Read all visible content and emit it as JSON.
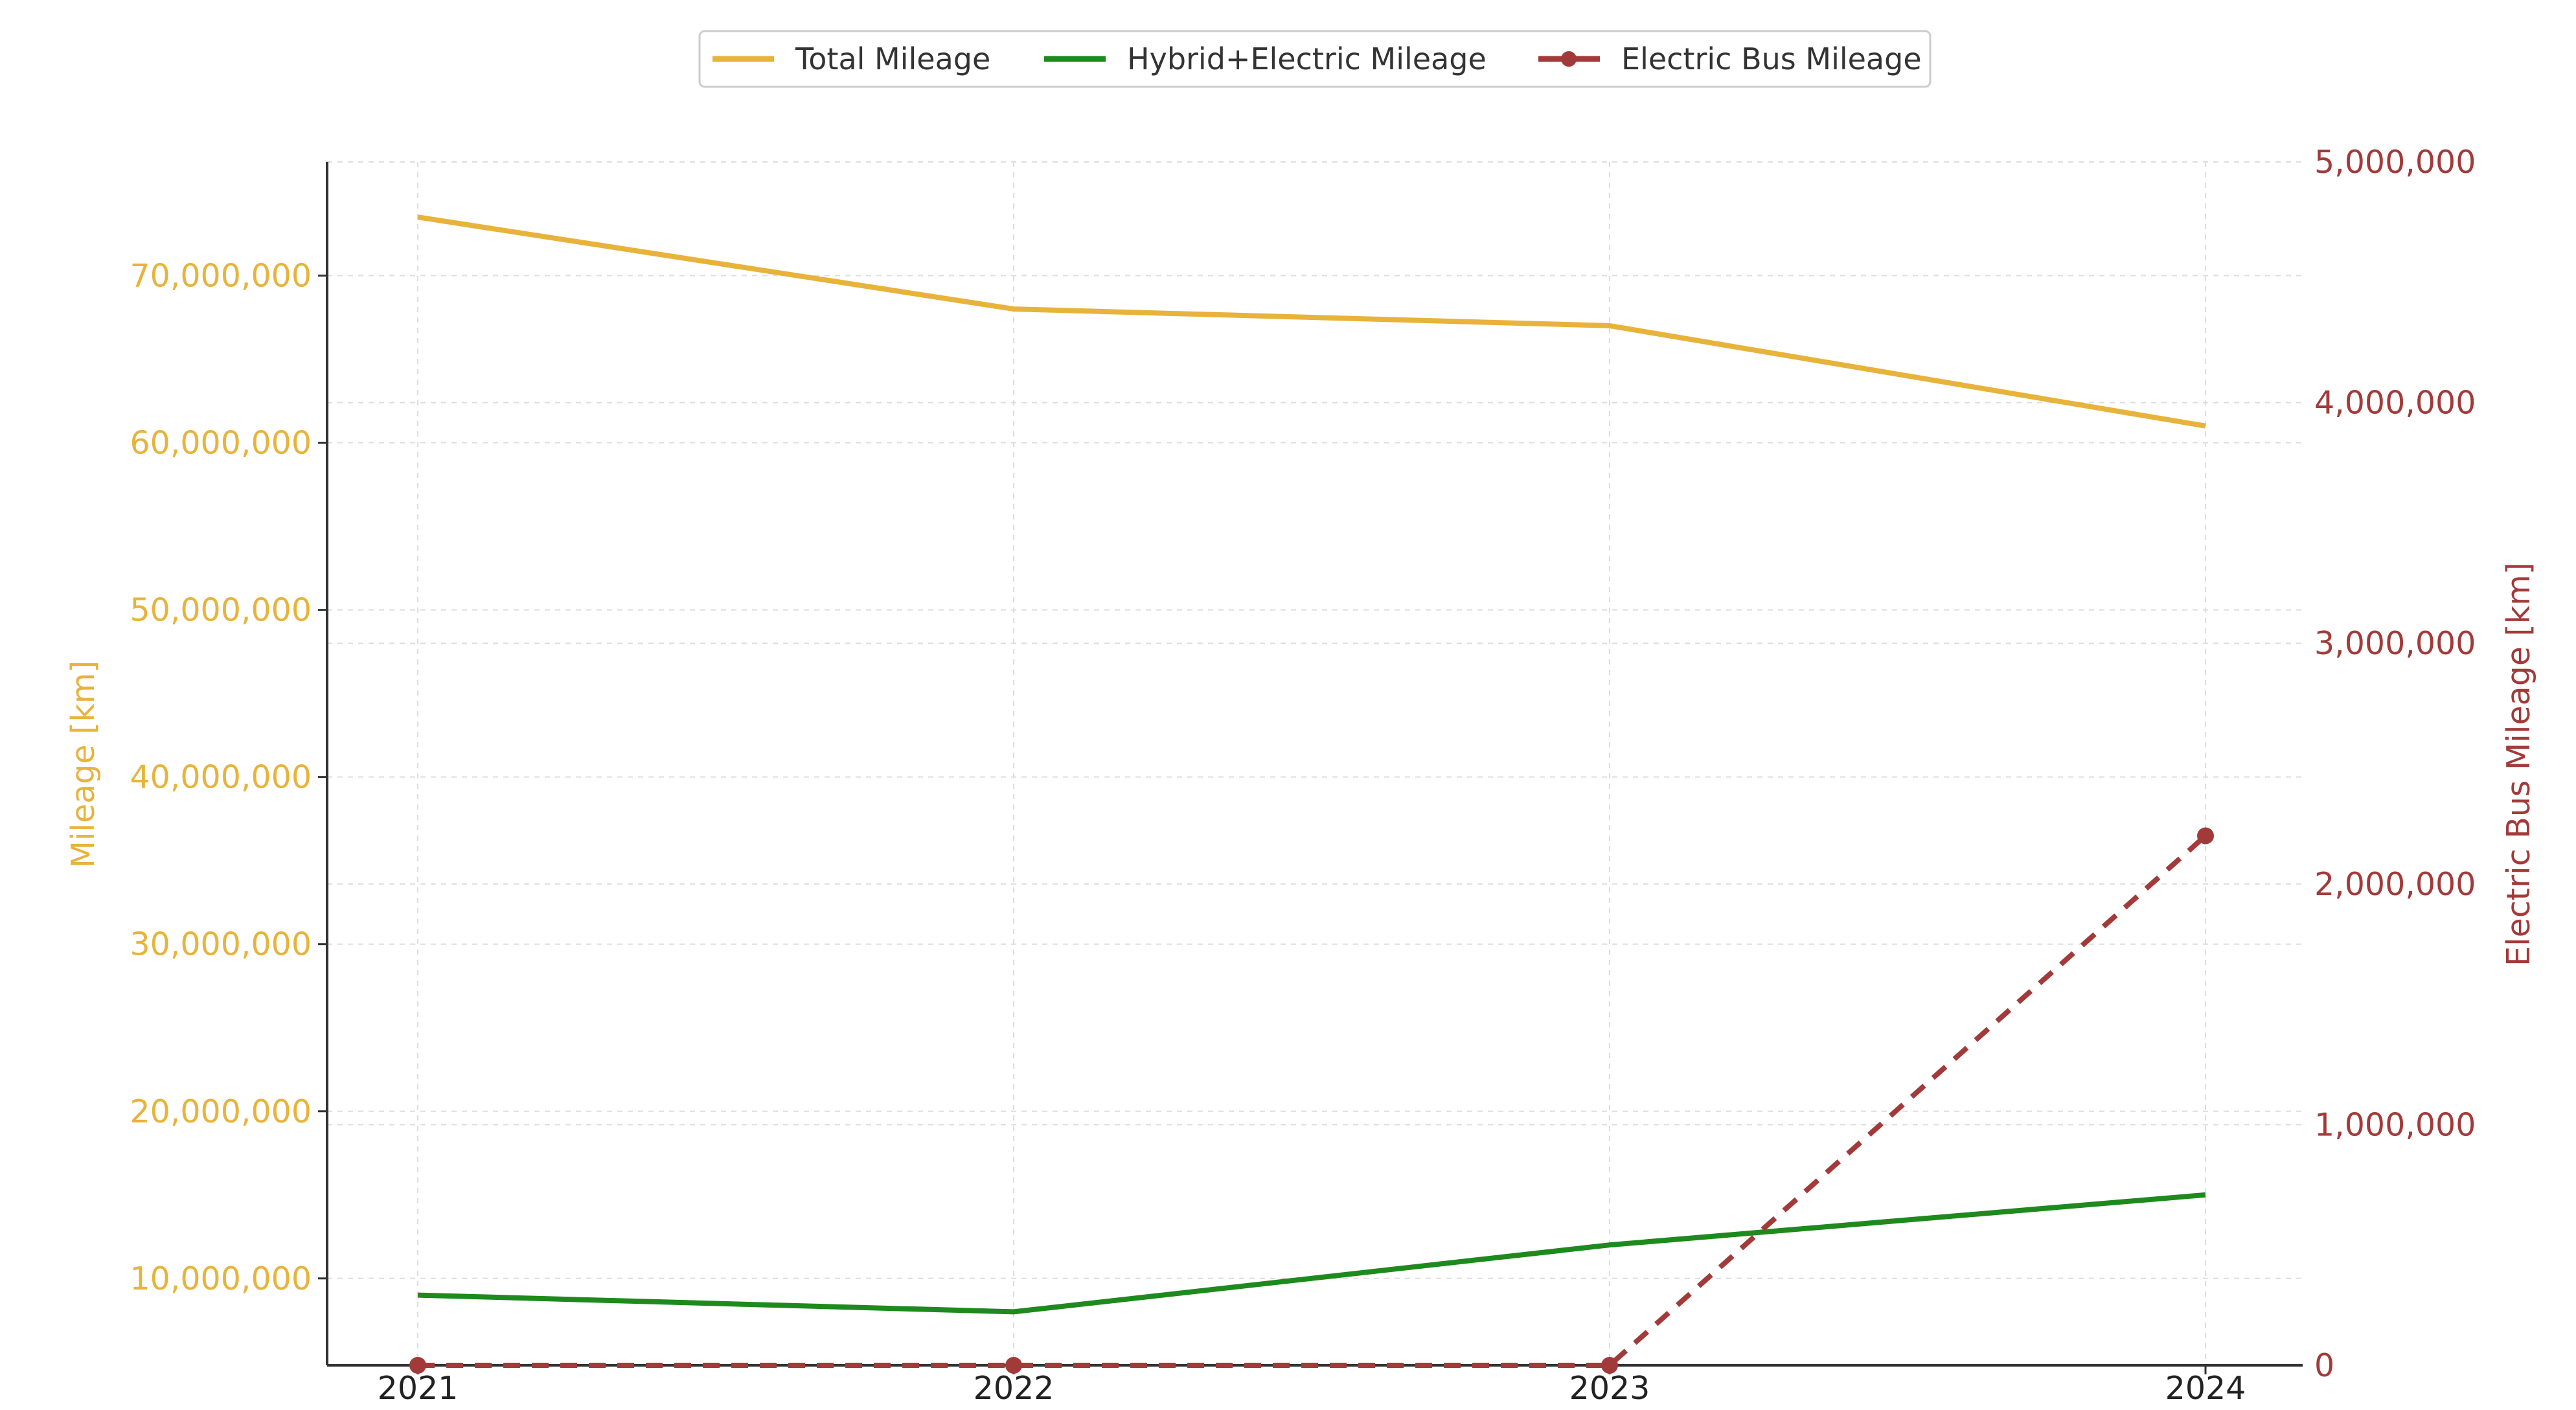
{
  "chart_data": {
    "type": "line",
    "categories": [
      "2021",
      "2022",
      "2023",
      "2024"
    ],
    "series": [
      {
        "name": "Total Mileage",
        "axis": "left",
        "color": "#E8B33A",
        "style": "solid",
        "markers": false,
        "values": [
          73500000,
          68000000,
          67000000,
          61000000
        ]
      },
      {
        "name": "Hybrid+Electric Mileage",
        "axis": "left",
        "color": "#1E8A1E",
        "style": "solid",
        "markers": false,
        "values": [
          9000000,
          8000000,
          12000000,
          15000000
        ]
      },
      {
        "name": "Electric Bus Mileage",
        "axis": "right",
        "color": "#A33A3A",
        "style": "dashed",
        "markers": true,
        "values": [
          0,
          0,
          0,
          2200000
        ]
      }
    ],
    "y_left": {
      "label": "Mileage [km]",
      "color": "#E8B33A",
      "ylim": [
        4800000,
        76800000
      ],
      "ticks": [
        10000000,
        20000000,
        30000000,
        40000000,
        50000000,
        60000000,
        70000000
      ],
      "tick_labels": [
        "10,000,000",
        "20,000,000",
        "30,000,000",
        "40,000,000",
        "50,000,000",
        "60,000,000",
        "70,000,000"
      ]
    },
    "y_right": {
      "label": "Electric Bus Mileage [km]",
      "color": "#A33A3A",
      "ylim": [
        0,
        5000000
      ],
      "ticks": [
        0,
        1000000,
        2000000,
        3000000,
        4000000,
        5000000
      ],
      "tick_labels": [
        "0",
        "1,000,000",
        "2,000,000",
        "3,000,000",
        "4,000,000",
        "5,000,000"
      ]
    },
    "grid": true,
    "legend_position": "top-center"
  }
}
